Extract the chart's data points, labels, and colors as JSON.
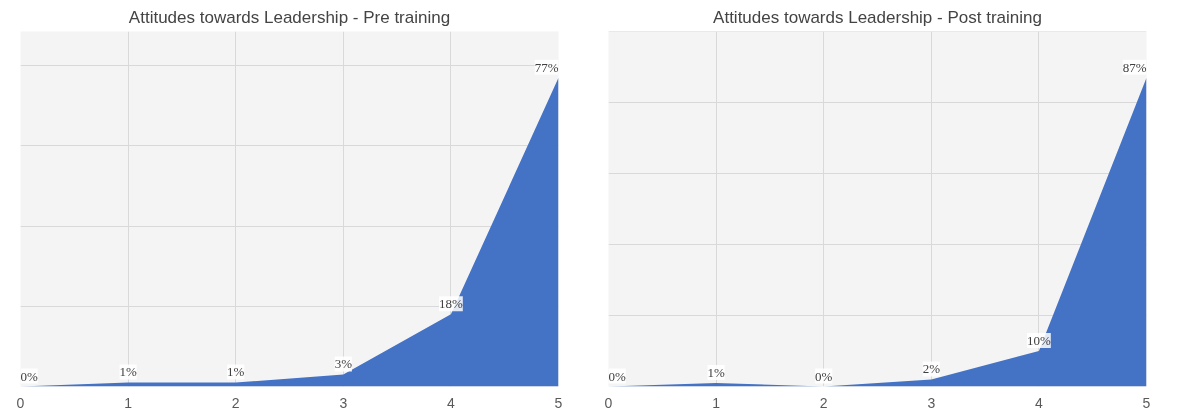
{
  "chart_data": [
    {
      "type": "area",
      "title": "Attitudes towards Leadership - Pre training",
      "x": [
        0,
        1,
        2,
        3,
        4,
        5
      ],
      "xlim": [
        0,
        5
      ],
      "xticks": [
        0,
        1,
        2,
        3,
        4,
        5
      ],
      "tick_labels": "x",
      "grid": true,
      "series": [
        {
          "color": "#4472c4",
          "values": [
            0,
            1,
            1,
            3,
            18,
            77
          ],
          "value_labels": [
            "0%",
            "1%",
            "1%",
            "3%",
            "18%",
            "77%"
          ]
        }
      ]
    },
    {
      "type": "area",
      "title": "Attitudes towards Leadership - Post training",
      "x": [
        0,
        1,
        2,
        3,
        4,
        5
      ],
      "xlim": [
        0,
        5
      ],
      "xticks": [
        0,
        1,
        2,
        3,
        4,
        5
      ],
      "tick_labels": "x",
      "grid": true,
      "series": [
        {
          "color": "#4472c4",
          "values": [
            0,
            1,
            0,
            2,
            10,
            87
          ],
          "value_labels": [
            "0%",
            "1%",
            "0%",
            "2%",
            "10%",
            "87%"
          ]
        }
      ]
    }
  ]
}
